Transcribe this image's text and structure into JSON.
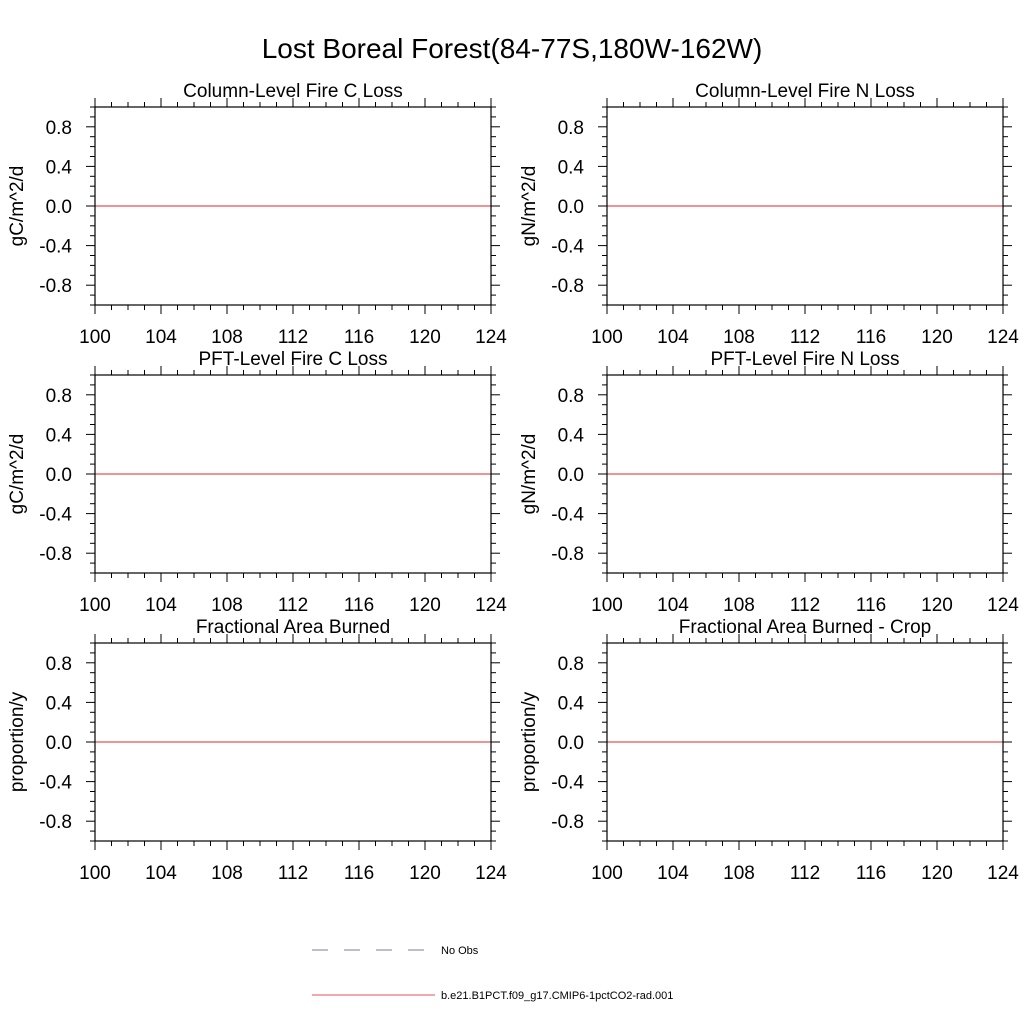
{
  "title": "Lost Boreal Forest(84-77S,180W-162W)",
  "chart_data": [
    {
      "type": "line",
      "title": "Column-Level Fire C Loss",
      "xlabel": "",
      "ylabel": "gC/m^2/d",
      "xlim": [
        100,
        124
      ],
      "ylim": [
        -1,
        1
      ],
      "x_ticks": [
        "100",
        "104",
        "108",
        "112",
        "116",
        "120",
        "124"
      ],
      "y_ticks": [
        "0.8",
        "0.4",
        "0.0",
        "-0.4",
        "-0.8"
      ],
      "series": [
        {
          "name": "b.e21.B1PCT.f09_g17.CMIP6-1pctCO2-rad.001",
          "x": [
            100,
            124
          ],
          "y": [
            0,
            0
          ]
        }
      ]
    },
    {
      "type": "line",
      "title": "Column-Level Fire N Loss",
      "xlabel": "",
      "ylabel": "gN/m^2/d",
      "xlim": [
        100,
        124
      ],
      "ylim": [
        -1,
        1
      ],
      "x_ticks": [
        "100",
        "104",
        "108",
        "112",
        "116",
        "120",
        "124"
      ],
      "y_ticks": [
        "0.8",
        "0.4",
        "0.0",
        "-0.4",
        "-0.8"
      ],
      "series": [
        {
          "name": "b.e21.B1PCT.f09_g17.CMIP6-1pctCO2-rad.001",
          "x": [
            100,
            124
          ],
          "y": [
            0,
            0
          ]
        }
      ]
    },
    {
      "type": "line",
      "title": "PFT-Level Fire C Loss",
      "xlabel": "",
      "ylabel": "gC/m^2/d",
      "xlim": [
        100,
        124
      ],
      "ylim": [
        -1,
        1
      ],
      "x_ticks": [
        "100",
        "104",
        "108",
        "112",
        "116",
        "120",
        "124"
      ],
      "y_ticks": [
        "0.8",
        "0.4",
        "0.0",
        "-0.4",
        "-0.8"
      ],
      "series": [
        {
          "name": "b.e21.B1PCT.f09_g17.CMIP6-1pctCO2-rad.001",
          "x": [
            100,
            124
          ],
          "y": [
            0,
            0
          ]
        }
      ]
    },
    {
      "type": "line",
      "title": "PFT-Level Fire N Loss",
      "xlabel": "",
      "ylabel": "gN/m^2/d",
      "xlim": [
        100,
        124
      ],
      "ylim": [
        -1,
        1
      ],
      "x_ticks": [
        "100",
        "104",
        "108",
        "112",
        "116",
        "120",
        "124"
      ],
      "y_ticks": [
        "0.8",
        "0.4",
        "0.0",
        "-0.4",
        "-0.8"
      ],
      "series": [
        {
          "name": "b.e21.B1PCT.f09_g17.CMIP6-1pctCO2-rad.001",
          "x": [
            100,
            124
          ],
          "y": [
            0,
            0
          ]
        }
      ]
    },
    {
      "type": "line",
      "title": "Fractional Area Burned",
      "xlabel": "",
      "ylabel": "proportion/y",
      "xlim": [
        100,
        124
      ],
      "ylim": [
        -1,
        1
      ],
      "x_ticks": [
        "100",
        "104",
        "108",
        "112",
        "116",
        "120",
        "124"
      ],
      "y_ticks": [
        "0.8",
        "0.4",
        "0.0",
        "-0.4",
        "-0.8"
      ],
      "series": [
        {
          "name": "b.e21.B1PCT.f09_g17.CMIP6-1pctCO2-rad.001",
          "x": [
            100,
            124
          ],
          "y": [
            0,
            0
          ]
        }
      ]
    },
    {
      "type": "line",
      "title": "Fractional Area Burned - Crop",
      "xlabel": "",
      "ylabel": "proportion/y",
      "xlim": [
        100,
        124
      ],
      "ylim": [
        -1,
        1
      ],
      "x_ticks": [
        "100",
        "104",
        "108",
        "112",
        "116",
        "120",
        "124"
      ],
      "y_ticks": [
        "0.8",
        "0.4",
        "0.0",
        "-0.4",
        "-0.8"
      ],
      "series": [
        {
          "name": "b.e21.B1PCT.f09_g17.CMIP6-1pctCO2-rad.001",
          "x": [
            100,
            124
          ],
          "y": [
            0,
            0
          ]
        }
      ]
    }
  ],
  "legend": {
    "placement": "bottom-center",
    "entries": [
      {
        "label": "No Obs",
        "style": "dashed",
        "color": "#7a7ab8"
      },
      {
        "label": "b.e21.B1PCT.f09_g17.CMIP6-1pctCO2-rad.001",
        "style": "solid",
        "color": "#e8505a"
      }
    ]
  },
  "colors": {
    "series_line": "#e8505a",
    "obs_line": "#7a7ab8",
    "axes": "#000000"
  }
}
